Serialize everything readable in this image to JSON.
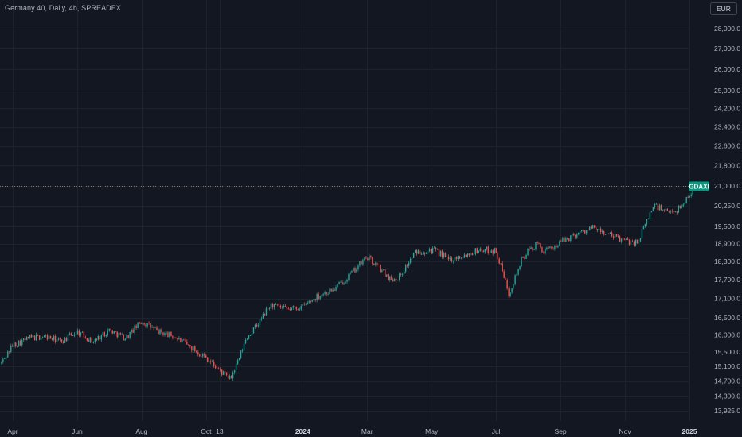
{
  "header": {
    "title": "Germany 40, Daily, 4h, SPREADEX",
    "currency_label": "EUR"
  },
  "colors": {
    "background": "#131722",
    "grid": "#1e222d",
    "up": "#26a69a",
    "down": "#ef5350",
    "price_line": "#c2886a",
    "badge": "#089981"
  },
  "chart_data": {
    "type": "line",
    "style": "candlestick",
    "y_scale": "log",
    "ylim": [
      13700,
      28900
    ],
    "last_price": {
      "label": "GDAXI",
      "value": 21000
    },
    "y_ticks": [
      28000,
      27000,
      26000,
      25000,
      24200,
      23400,
      22600,
      21800,
      21000,
      20250,
      19500,
      18900,
      18300,
      17700,
      17100,
      16500,
      16000,
      15500,
      15100,
      14700,
      14300,
      13925
    ],
    "y_tick_labels": [
      "28,000.0",
      "27,000.0",
      "26,000.0",
      "25,000.0",
      "24,200.0",
      "23,400.0",
      "22,600.0",
      "21,800.0",
      "21,000.0",
      "20,250.0",
      "19,500.0",
      "18,900.0",
      "18,300.0",
      "17,700.0",
      "17,100.0",
      "16,500.0",
      "16,000.0",
      "15,500.0",
      "15,100.0",
      "14,700.0",
      "14,300.0",
      "13,925.0"
    ],
    "x_ticks": [
      {
        "label": "Apr",
        "month": 0,
        "bold": false
      },
      {
        "label": "Jun",
        "month": 2,
        "bold": false
      },
      {
        "label": "Aug",
        "month": 4,
        "bold": false
      },
      {
        "label": "Oct",
        "month": 6,
        "bold": false
      },
      {
        "label": "13",
        "month": 6.42,
        "bold": false
      },
      {
        "label": "2024",
        "month": 9,
        "bold": true
      },
      {
        "label": "Mar",
        "month": 11,
        "bold": false
      },
      {
        "label": "May",
        "month": 13,
        "bold": false
      },
      {
        "label": "Jul",
        "month": 15,
        "bold": false
      },
      {
        "label": "Sep",
        "month": 17,
        "bold": false
      },
      {
        "label": "Nov",
        "month": 19,
        "bold": false
      },
      {
        "label": "2025",
        "month": 21,
        "bold": true
      }
    ],
    "xlim_months": [
      -0.35,
      21.3
    ],
    "series": [
      {
        "month": [
          -0.35,
          0.0,
          0.5,
          1.0,
          1.5,
          2.0,
          2.5,
          3.0,
          3.5,
          4.0,
          4.5,
          5.0,
          5.5,
          6.0,
          6.4,
          6.75,
          7.0,
          7.25,
          7.6,
          8.0,
          8.5,
          9.0,
          9.5,
          10.0,
          10.5,
          11.0,
          11.4,
          11.75,
          12.0,
          12.5,
          13.0,
          13.3,
          13.5,
          14.0,
          14.5,
          15.0,
          15.4,
          15.8,
          16.0,
          16.3,
          16.5,
          17.0,
          17.5,
          18.0,
          18.5,
          19.0,
          19.4,
          19.6,
          19.9,
          20.3,
          20.6,
          20.8,
          21.0,
          21.2
        ],
        "close": [
          15200,
          15700,
          15900,
          15950,
          15800,
          16100,
          15800,
          16150,
          15900,
          16400,
          16100,
          15950,
          15650,
          15350,
          15000,
          14750,
          15250,
          15900,
          16300,
          16900,
          16750,
          16850,
          17200,
          17400,
          17900,
          18450,
          18050,
          17700,
          17800,
          18600,
          18700,
          18550,
          18350,
          18500,
          18700,
          18650,
          17250,
          18350,
          18650,
          18900,
          18600,
          18950,
          19250,
          19450,
          19200,
          19000,
          18950,
          19500,
          20300,
          20000,
          20100,
          20300,
          20700,
          21000
        ]
      }
    ]
  }
}
